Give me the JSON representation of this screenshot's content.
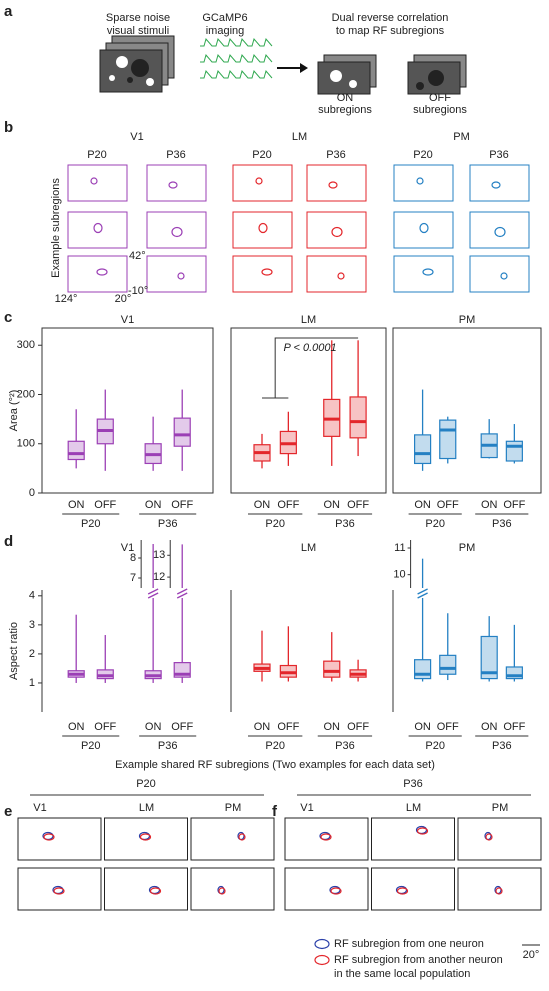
{
  "panel_labels": [
    "a",
    "b",
    "c",
    "d",
    "e",
    "f"
  ],
  "panel_a": {
    "stimuli": [
      "Sparse noise",
      "visual stimuli"
    ],
    "imaging": [
      "GCaMP6",
      "imaging"
    ],
    "correlation": [
      "Dual reverse correlation",
      "to map RF subregions"
    ],
    "on": [
      "ON",
      "subregions"
    ],
    "off": [
      "OFF",
      "subregions"
    ]
  },
  "panel_b": {
    "areas": [
      {
        "name": "V1",
        "color": "#9b3fb5"
      },
      {
        "name": "LM",
        "color": "#e3262b"
      },
      {
        "name": "PM",
        "color": "#2480c3"
      }
    ],
    "ages": [
      "P20",
      "P36"
    ],
    "ylabel": "Example subregions",
    "elev_top": "42°",
    "elev_bottom": "-10°",
    "azim_left": "124°",
    "azim_right": "20°"
  },
  "chart_data": [
    {
      "type": "box",
      "title": "V1",
      "color": "#9b3fb5",
      "ylabel": "Area (°²)",
      "categories": [
        "ON",
        "OFF",
        "ON",
        "OFF"
      ],
      "groups": [
        "P20",
        "P36"
      ],
      "ylim": [
        0,
        335
      ],
      "yticks": [
        0,
        100,
        200,
        300
      ],
      "boxes": {
        "low": [
          50,
          45,
          45,
          45
        ],
        "q1": [
          68,
          100,
          60,
          95
        ],
        "median": [
          80,
          127,
          78,
          118
        ],
        "q3": [
          105,
          150,
          100,
          152
        ],
        "high": [
          170,
          210,
          155,
          210
        ]
      }
    },
    {
      "type": "box",
      "title": "LM",
      "color": "#e3262b",
      "categories": [
        "ON",
        "OFF",
        "ON",
        "OFF"
      ],
      "groups": [
        "P20",
        "P36"
      ],
      "ylim": [
        0,
        335
      ],
      "annotation": "P < 0.0001",
      "boxes": {
        "low": [
          50,
          55,
          55,
          75
        ],
        "q1": [
          65,
          80,
          115,
          112
        ],
        "median": [
          82,
          100,
          150,
          145
        ],
        "q3": [
          98,
          125,
          190,
          195
        ],
        "high": [
          120,
          165,
          310,
          310
        ]
      }
    },
    {
      "type": "box",
      "title": "PM",
      "color": "#2480c3",
      "categories": [
        "ON",
        "OFF",
        "ON",
        "OFF"
      ],
      "groups": [
        "P20",
        "P36"
      ],
      "ylim": [
        0,
        335
      ],
      "boxes": {
        "low": [
          45,
          60,
          70,
          60
        ],
        "q1": [
          60,
          70,
          72,
          65
        ],
        "median": [
          80,
          128,
          97,
          95
        ],
        "q3": [
          118,
          148,
          120,
          105
        ],
        "high": [
          210,
          155,
          150,
          140
        ]
      }
    },
    {
      "type": "box",
      "title": "V1",
      "color": "#9b3fb5",
      "ylabel": "Aspect ratio",
      "categories": [
        "ON",
        "OFF",
        "ON",
        "OFF"
      ],
      "groups": [
        "P20",
        "P36"
      ],
      "ylim": [
        0,
        4.2
      ],
      "yticks": [
        1,
        2,
        3,
        4
      ],
      "insets": [
        {
          "box": 2,
          "ylim": [
            6.5,
            8.9
          ],
          "yticks": [
            7,
            8
          ]
        },
        {
          "box": 3,
          "ylim": [
            11.5,
            13.7
          ],
          "yticks": [
            12,
            13
          ]
        }
      ],
      "boxes": {
        "low": [
          1.0,
          1.0,
          1.0,
          1.0
        ],
        "q1": [
          1.2,
          1.15,
          1.15,
          1.2
        ],
        "median": [
          1.3,
          1.25,
          1.25,
          1.3
        ],
        "q3": [
          1.42,
          1.45,
          1.42,
          1.7
        ],
        "high": [
          3.35,
          2.65,
          8.7,
          13.5
        ]
      }
    },
    {
      "type": "box",
      "title": "LM",
      "color": "#e3262b",
      "categories": [
        "ON",
        "OFF",
        "ON",
        "OFF"
      ],
      "groups": [
        "P20",
        "P36"
      ],
      "ylim": [
        0,
        4.2
      ],
      "boxes": {
        "low": [
          1.05,
          1.05,
          1.05,
          1.05
        ],
        "q1": [
          1.4,
          1.2,
          1.2,
          1.2
        ],
        "median": [
          1.5,
          1.35,
          1.4,
          1.3
        ],
        "q3": [
          1.65,
          1.6,
          1.75,
          1.45
        ],
        "high": [
          2.8,
          2.95,
          2.75,
          1.8
        ]
      }
    },
    {
      "type": "box",
      "title": "PM",
      "color": "#2480c3",
      "categories": [
        "ON",
        "OFF",
        "ON",
        "OFF"
      ],
      "groups": [
        "P20",
        "P36"
      ],
      "ylim": [
        0,
        4.2
      ],
      "insets": [
        {
          "box": 0,
          "ylim": [
            9.5,
            11.3
          ],
          "yticks": [
            10,
            11
          ]
        }
      ],
      "boxes": {
        "low": [
          1.05,
          1.1,
          1.05,
          1.05
        ],
        "q1": [
          1.15,
          1.3,
          1.15,
          1.15
        ],
        "median": [
          1.3,
          1.5,
          1.35,
          1.25
        ],
        "q3": [
          1.8,
          1.95,
          2.6,
          1.55
        ],
        "high": [
          10.6,
          3.4,
          3.3,
          3.0
        ]
      }
    }
  ],
  "panel_ef": {
    "title": "Example shared RF subregions (Two examples for each data set)",
    "ages": [
      "P20",
      "P36"
    ],
    "legend": [
      "RF subregion from one neuron",
      "RF subregion from another neuron",
      "in the same local population"
    ],
    "legend_colors": [
      "#2a3fa8",
      "#e3262b"
    ],
    "scale": "20°"
  }
}
